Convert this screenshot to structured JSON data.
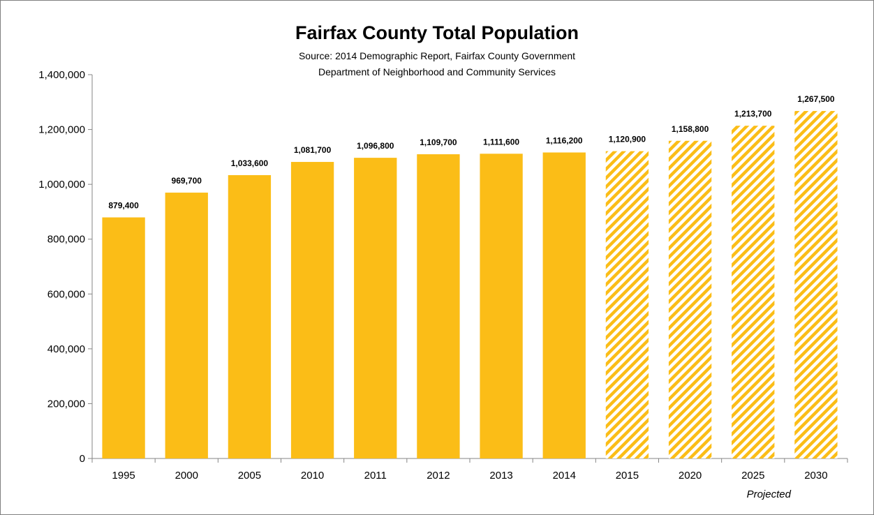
{
  "chart_data": {
    "type": "bar",
    "title": "Fairfax County Total Population",
    "subtitle_lines": [
      "Source: 2014 Demographic Report, Fairfax County Government",
      "Department of Neighborhood and Community Services"
    ],
    "categories": [
      "1995",
      "2000",
      "2005",
      "2010",
      "2011",
      "2012",
      "2013",
      "2014",
      "2015",
      "2020",
      "2025",
      "2030"
    ],
    "values": [
      879400,
      969700,
      1033600,
      1081700,
      1096800,
      1109700,
      1111600,
      1116200,
      1120900,
      1158800,
      1213700,
      1267500
    ],
    "data_labels": [
      "879,400",
      "969,700",
      "1,033,600",
      "1,081,700",
      "1,096,800",
      "1,109,700",
      "1,111,600",
      "1,116,200",
      "1,120,900",
      "1,158,800",
      "1,213,700",
      "1,267,500"
    ],
    "projected_from_index": 8,
    "annotation": "Projected",
    "ylim": [
      0,
      1400000
    ],
    "yticks": [
      0,
      200000,
      400000,
      600000,
      800000,
      1000000,
      1200000,
      1400000
    ],
    "ytick_labels": [
      "0",
      "200,000",
      "400,000",
      "600,000",
      "800,000",
      "1,000,000",
      "1,200,000",
      "1,400,000"
    ],
    "grid": false,
    "legend": "none",
    "colors": {
      "bar": "#fbbd17",
      "hatch_bg": "#ffffff"
    }
  }
}
